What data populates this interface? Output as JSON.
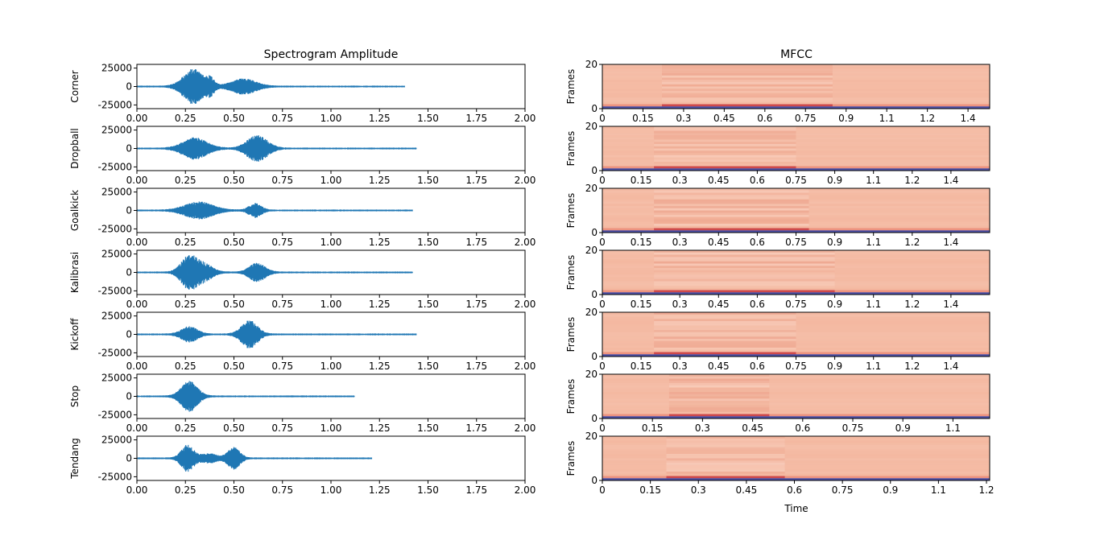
{
  "left_title": "Spectrogram Amplitude",
  "right_title": "MFCC",
  "right_ylabel": "Frames",
  "right_xlabel": "Time",
  "colors": {
    "waveform": "#1f77b4",
    "mfcc_fill": "#f4b59c",
    "mfcc_dark": "#b2182b",
    "mfcc_low": "#4a4fa6"
  },
  "chart_data": [
    {
      "type": "line",
      "title": "Spectrogram Amplitude",
      "xlim": [
        0,
        2.0
      ],
      "ylim": [
        -30000,
        30000
      ],
      "xticks": [
        "0.00",
        "0.25",
        "0.50",
        "0.75",
        "1.00",
        "1.25",
        "1.50",
        "1.75",
        "2.00"
      ],
      "yticks": [
        "25000",
        "0",
        "-25000"
      ],
      "ytick_values": [
        25000,
        0,
        -25000
      ],
      "series": [
        {
          "name": "Corner",
          "duration": 1.38,
          "bursts": [
            [
              0.29,
              23000,
              0.05
            ],
            [
              0.38,
              9000,
              0.02
            ],
            [
              0.55,
              10000,
              0.06
            ]
          ]
        },
        {
          "name": "Dropball",
          "duration": 1.44,
          "bursts": [
            [
              0.3,
              14000,
              0.06
            ],
            [
              0.62,
              17000,
              0.05
            ]
          ]
        },
        {
          "name": "Goalkick",
          "duration": 1.42,
          "bursts": [
            [
              0.32,
              11000,
              0.07
            ],
            [
              0.61,
              9000,
              0.03
            ]
          ]
        },
        {
          "name": "Kalibrasi",
          "duration": 1.42,
          "bursts": [
            [
              0.27,
              22000,
              0.04
            ],
            [
              0.35,
              10000,
              0.04
            ],
            [
              0.62,
              12000,
              0.04
            ]
          ]
        },
        {
          "name": "Kickoff",
          "duration": 1.44,
          "bursts": [
            [
              0.27,
              10000,
              0.04
            ],
            [
              0.58,
              18000,
              0.04
            ]
          ]
        },
        {
          "name": "Stop",
          "duration": 1.12,
          "bursts": [
            [
              0.27,
              20000,
              0.04
            ]
          ]
        },
        {
          "name": "Tendang",
          "duration": 1.21,
          "bursts": [
            [
              0.26,
              18000,
              0.03
            ],
            [
              0.37,
              6000,
              0.04
            ],
            [
              0.5,
              14000,
              0.03
            ]
          ]
        }
      ]
    },
    {
      "type": "heatmap",
      "title": "MFCC",
      "ylabel": "Frames",
      "xlabel": "Time",
      "ylim": [
        0,
        20
      ],
      "yticks": [
        "20",
        "0"
      ],
      "rows": [
        {
          "name": "Corner",
          "xmax": 1.43,
          "xticks": [
            "0",
            "0.15",
            "0.3",
            "0.45",
            "0.6",
            "0.75",
            "0.9",
            "1.1",
            "1.2",
            "1.4"
          ],
          "xtick_values": [
            0,
            0.15,
            0.3,
            0.45,
            0.6,
            0.75,
            0.9,
            1.05,
            1.2,
            1.35
          ],
          "bands": [
            [
              0.22,
              0.85
            ]
          ]
        },
        {
          "name": "Dropball",
          "xmax": 1.5,
          "xticks": [
            "0",
            "0.15",
            "0.3",
            "0.45",
            "0.6",
            "0.75",
            "0.9",
            "1.1",
            "1.2",
            "1.4"
          ],
          "xtick_values": [
            0,
            0.15,
            0.3,
            0.45,
            0.6,
            0.75,
            0.9,
            1.05,
            1.2,
            1.35
          ],
          "bands": [
            [
              0.2,
              0.75
            ]
          ]
        },
        {
          "name": "Goalkick",
          "xmax": 1.5,
          "xticks": [
            "0",
            "0.15",
            "0.3",
            "0.45",
            "0.6",
            "0.75",
            "0.9",
            "1.1",
            "1.2",
            "1.4"
          ],
          "xtick_values": [
            0,
            0.15,
            0.3,
            0.45,
            0.6,
            0.75,
            0.9,
            1.05,
            1.2,
            1.35
          ],
          "bands": [
            [
              0.2,
              0.8
            ]
          ]
        },
        {
          "name": "Kalibrasi",
          "xmax": 1.5,
          "xticks": [
            "0",
            "0.15",
            "0.3",
            "0.45",
            "0.6",
            "0.75",
            "0.9",
            "1.1",
            "1.2",
            "1.4"
          ],
          "xtick_values": [
            0,
            0.15,
            0.3,
            0.45,
            0.6,
            0.75,
            0.9,
            1.05,
            1.2,
            1.35
          ],
          "bands": [
            [
              0.2,
              0.9
            ]
          ]
        },
        {
          "name": "Kickoff",
          "xmax": 1.5,
          "xticks": [
            "0",
            "0.15",
            "0.3",
            "0.45",
            "0.6",
            "0.75",
            "0.9",
            "1.1",
            "1.2",
            "1.4"
          ],
          "xtick_values": [
            0,
            0.15,
            0.3,
            0.45,
            0.6,
            0.75,
            0.9,
            1.05,
            1.2,
            1.35
          ],
          "bands": [
            [
              0.2,
              0.75
            ]
          ]
        },
        {
          "name": "Stop",
          "xmax": 1.16,
          "xticks": [
            "0",
            "0.15",
            "0.3",
            "0.45",
            "0.6",
            "0.75",
            "0.9",
            "1.1"
          ],
          "xtick_values": [
            0,
            0.15,
            0.3,
            0.45,
            0.6,
            0.75,
            0.9,
            1.05
          ],
          "bands": [
            [
              0.2,
              0.5
            ]
          ]
        },
        {
          "name": "Tendang",
          "xmax": 1.21,
          "xticks": [
            "0",
            "0.15",
            "0.3",
            "0.45",
            "0.6",
            "0.75",
            "0.9",
            "1.1",
            "1.2"
          ],
          "xtick_values": [
            0,
            0.15,
            0.3,
            0.45,
            0.6,
            0.75,
            0.9,
            1.05,
            1.2
          ],
          "bands": [
            [
              0.2,
              0.57
            ]
          ]
        }
      ]
    }
  ]
}
